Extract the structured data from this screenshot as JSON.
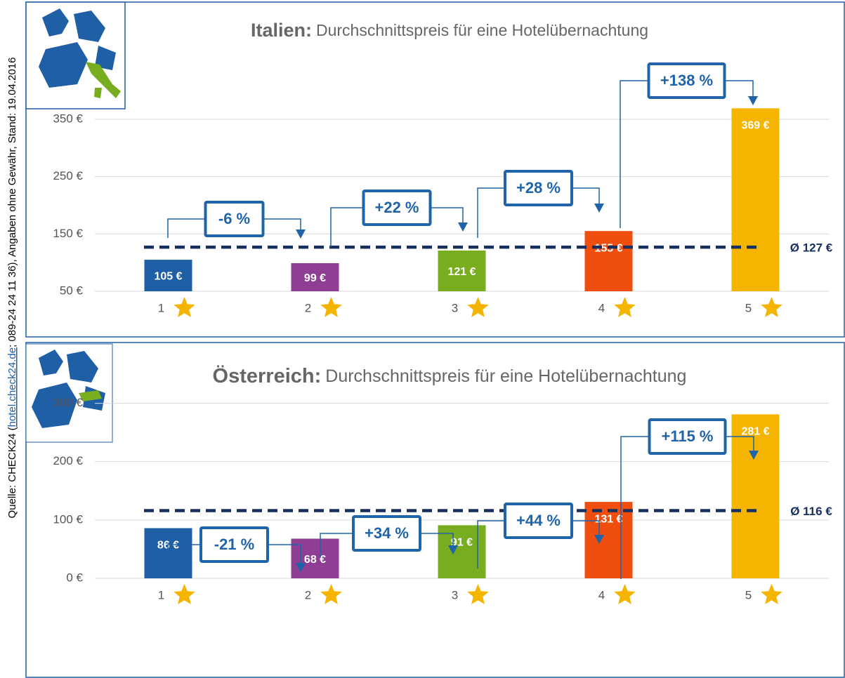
{
  "source": [
    "Quelle: CHECK24 (",
    "hotel.check24.de",
    "; 089-24 24 11 36), Angaben ohne Gewähr, Stand: 19.04.2016"
  ],
  "chart_data": [
    {
      "type": "bar",
      "title_country": "Italien:",
      "title": "Durchschnittspreis für eine Hotelübernachtung",
      "categories": [
        "1",
        "2",
        "3",
        "4",
        "5"
      ],
      "values": [
        105,
        99,
        121,
        155,
        369
      ],
      "value_labels": [
        "105 €",
        "99 €",
        "121 €",
        "155 €",
        "369 €"
      ],
      "colors": [
        "#1f5fa6",
        "#8e3f93",
        "#77ad1f",
        "#f04e0e",
        "#f5b400"
      ],
      "ylim": [
        50,
        400
      ],
      "yticks": [
        {
          "value": 50,
          "label": "50 €"
        },
        {
          "value": 150,
          "label": "150 €"
        },
        {
          "value": 250,
          "label": "250 €"
        },
        {
          "value": 350,
          "label": "350 €"
        }
      ],
      "grid": true,
      "average": {
        "value": 127,
        "label": "Ø 127 €"
      },
      "changes": [
        {
          "value": -6,
          "label": "-6 %"
        },
        {
          "value": 22,
          "label": "+22 %"
        },
        {
          "value": 28,
          "label": "+28 %"
        },
        {
          "value": 138,
          "label": "+138 %"
        }
      ]
    },
    {
      "type": "bar",
      "title_country": "Österreich:",
      "title": "Durchschnittspreis für eine Hotelübernachtung",
      "categories": [
        "1",
        "2",
        "3",
        "4",
        "5"
      ],
      "values": [
        86,
        68,
        91,
        131,
        281
      ],
      "value_labels": [
        "86 €",
        "68 €",
        "91 €",
        "131 €",
        "281 €"
      ],
      "colors": [
        "#1f5fa6",
        "#8e3f93",
        "#77ad1f",
        "#f04e0e",
        "#f5b400"
      ],
      "ylim": [
        0,
        350
      ],
      "yticks": [
        {
          "value": 0,
          "label": "0 €"
        },
        {
          "value": 100,
          "label": "100 €"
        },
        {
          "value": 200,
          "label": "200 €"
        },
        {
          "value": 300,
          "label": "300 €"
        }
      ],
      "grid": true,
      "average": {
        "value": 116,
        "label": "Ø 116 €"
      },
      "changes": [
        {
          "value": -21,
          "label": "-21 %"
        },
        {
          "value": 34,
          "label": "+34 %"
        },
        {
          "value": 44,
          "label": "+44 %"
        },
        {
          "value": 115,
          "label": "+115 %"
        }
      ]
    }
  ]
}
